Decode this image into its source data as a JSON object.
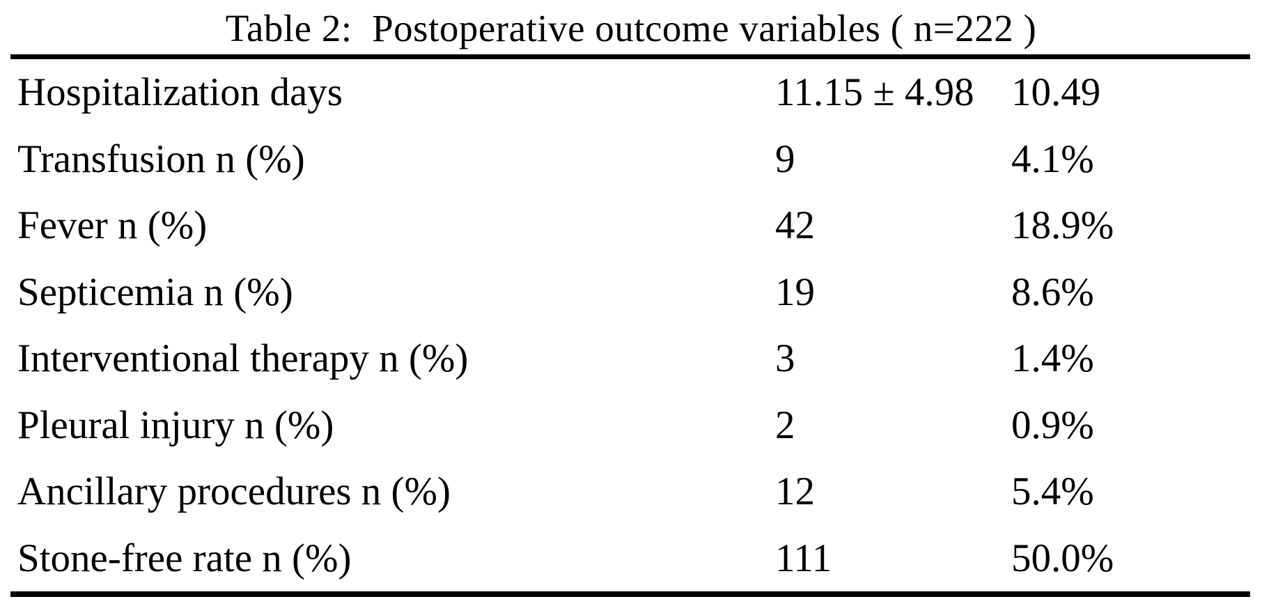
{
  "colors": {
    "background": "#ffffff",
    "text": "#000000",
    "rule": "#000000"
  },
  "table": {
    "title": "Table 2:  Postoperative outcome variables ( n=222 )",
    "sample_size": "n=222",
    "rows": [
      {
        "label": "Hospitalization days",
        "value": "11.15 ± 4.98",
        "percent": "10.49"
      },
      {
        "label": "Transfusion n (%)",
        "value": "9",
        "percent": "4.1%"
      },
      {
        "label": "Fever n (%)",
        "value": "42",
        "percent": "18.9%"
      },
      {
        "label": "Septicemia n (%)",
        "value": "19",
        "percent": "8.6%"
      },
      {
        "label": "Interventional therapy n (%)",
        "value": "3",
        "percent": "1.4%"
      },
      {
        "label": "Pleural injury n (%)",
        "value": "2",
        "percent": "0.9%"
      },
      {
        "label": "Ancillary procedures n (%)",
        "value": "12",
        "percent": "5.4%"
      },
      {
        "label": "Stone-free rate n (%)",
        "value": "111",
        "percent": "50.0%"
      }
    ]
  }
}
